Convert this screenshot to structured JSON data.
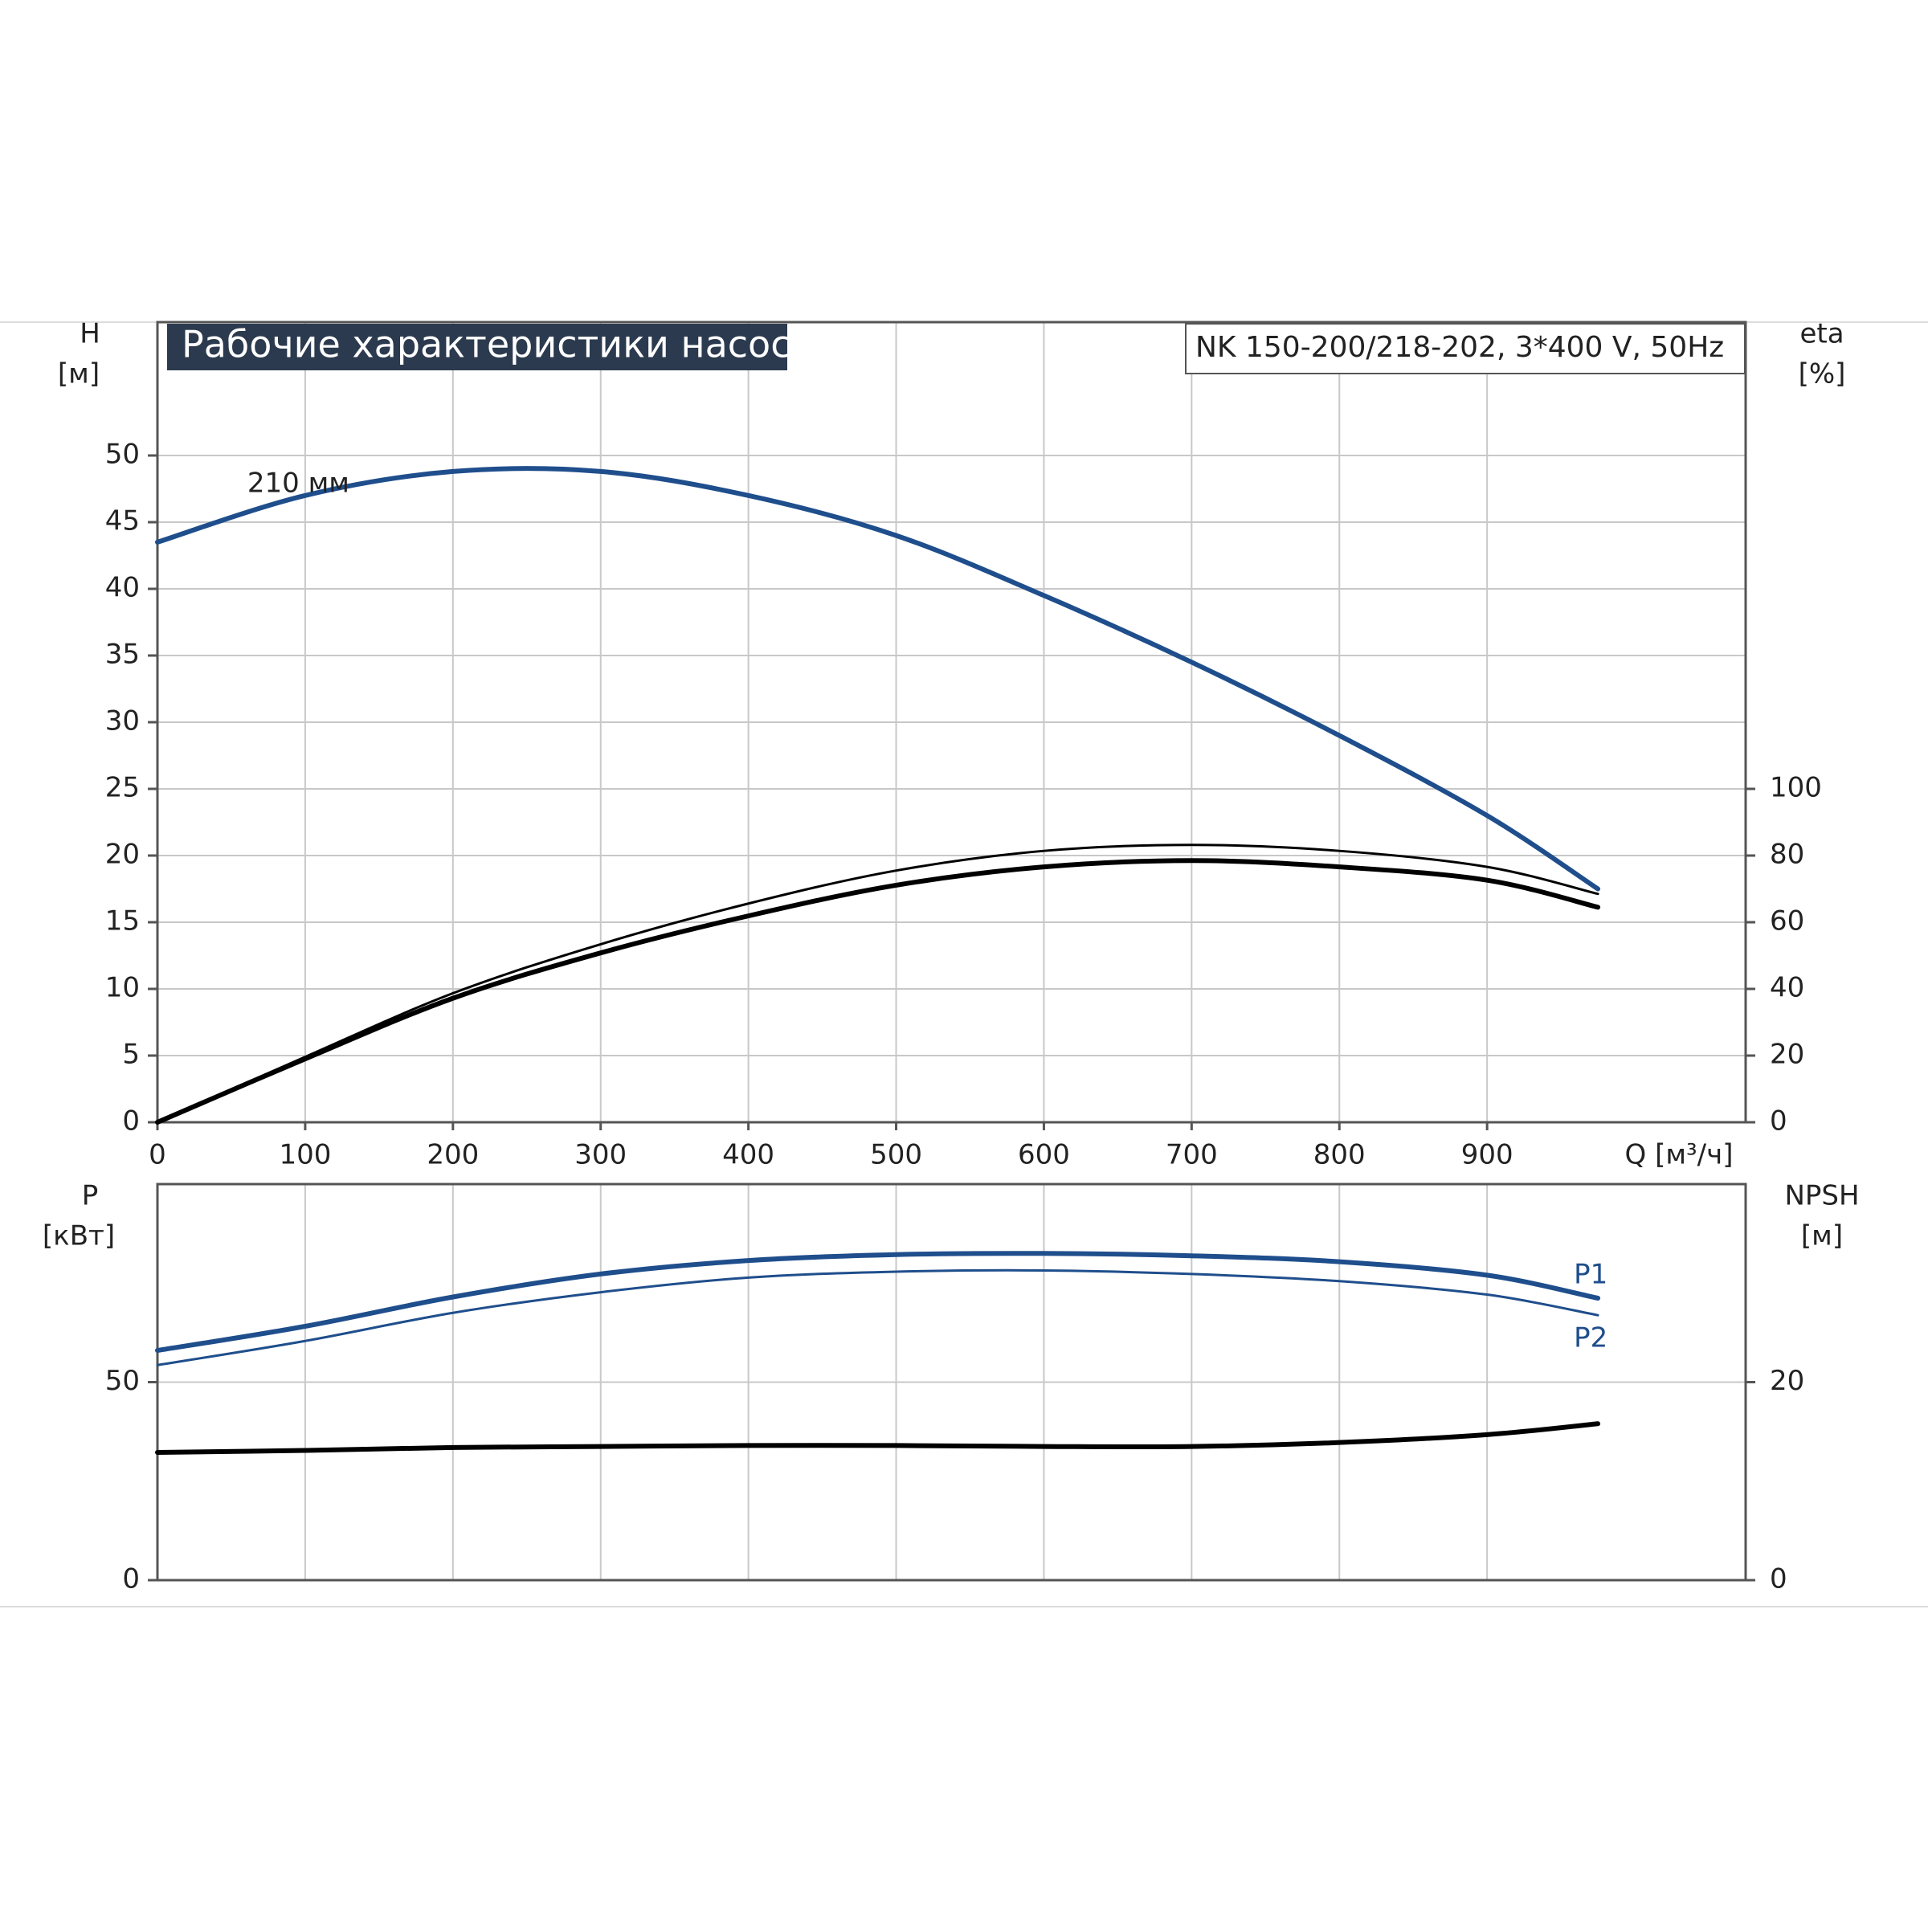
{
  "chart_data": [
    {
      "type": "line",
      "title": "Рабочие характеристики насоса",
      "subtitle": "NK 150-200/218-202, 3*400 V, 50Hz",
      "ylabel": "H",
      "ylabel_unit": "[м]",
      "y2label": "eta",
      "y2label_unit": "[%]",
      "xlabel": "Q [м³/ч]",
      "annotation": "210 мм",
      "x": [
        0,
        100,
        200,
        300,
        400,
        500,
        600,
        700,
        800,
        900,
        975
      ],
      "series": [
        {
          "color": "#1f4e8c",
          "values": [
            43.5,
            47,
            48.8,
            48.8,
            47,
            44,
            39.5,
            34.5,
            29,
            23,
            17.5
          ]
        },
        {
          "color": "#000000",
          "axis": "y2",
          "values": [
            0,
            19.6,
            38.7,
            53.4,
            65.6,
            75.5,
            81.4,
            83.2,
            81.4,
            76.6,
            68.5
          ]
        },
        {
          "color": "#000000",
          "axis": "y2",
          "values": [
            0,
            19,
            37.2,
            50.8,
            61.9,
            71.1,
            76.6,
            78.5,
            76.6,
            72.6,
            64.5
          ]
        }
      ],
      "xlim": [
        0,
        1075
      ],
      "xticks": [
        0,
        100,
        200,
        300,
        400,
        500,
        600,
        700,
        800,
        900
      ],
      "ylim": [
        0,
        60
      ],
      "yticks": [
        0,
        5,
        10,
        15,
        20,
        25,
        30,
        35,
        40,
        45,
        50
      ],
      "y2lim": [
        0,
        240
      ],
      "y2ticks": [
        0,
        20,
        40,
        60,
        80,
        100
      ],
      "grid": true
    },
    {
      "type": "line",
      "ylabel": "P",
      "ylabel_unit": "[кВт]",
      "y2label": "NPSH",
      "y2label_unit": "[м]",
      "x": [
        0,
        100,
        200,
        300,
        400,
        500,
        600,
        700,
        800,
        900,
        975
      ],
      "series": [
        {
          "name": "P1",
          "color": "#1f4e8c",
          "values": [
            58,
            64.1,
            71.5,
            77.3,
            80.7,
            82.2,
            82.5,
            81.9,
            80.4,
            77,
            71.2
          ]
        },
        {
          "name": "P2",
          "color": "#1f4e8c",
          "values": [
            54.3,
            60.4,
            67.5,
            72.7,
            76.4,
            77.9,
            78.2,
            77.3,
            75.5,
            72.1,
            66.9
          ]
        },
        {
          "color": "#000000",
          "axis": "y2",
          "values": [
            12.9,
            13.1,
            13.4,
            13.5,
            13.6,
            13.6,
            13.5,
            13.5,
            13.9,
            14.7,
            15.8
          ]
        }
      ],
      "xlim": [
        0,
        1075
      ],
      "ylim": [
        0,
        100
      ],
      "yticks": [
        0,
        50
      ],
      "y2lim": [
        0,
        40
      ],
      "y2ticks": [
        0,
        20
      ],
      "grid": true
    }
  ]
}
